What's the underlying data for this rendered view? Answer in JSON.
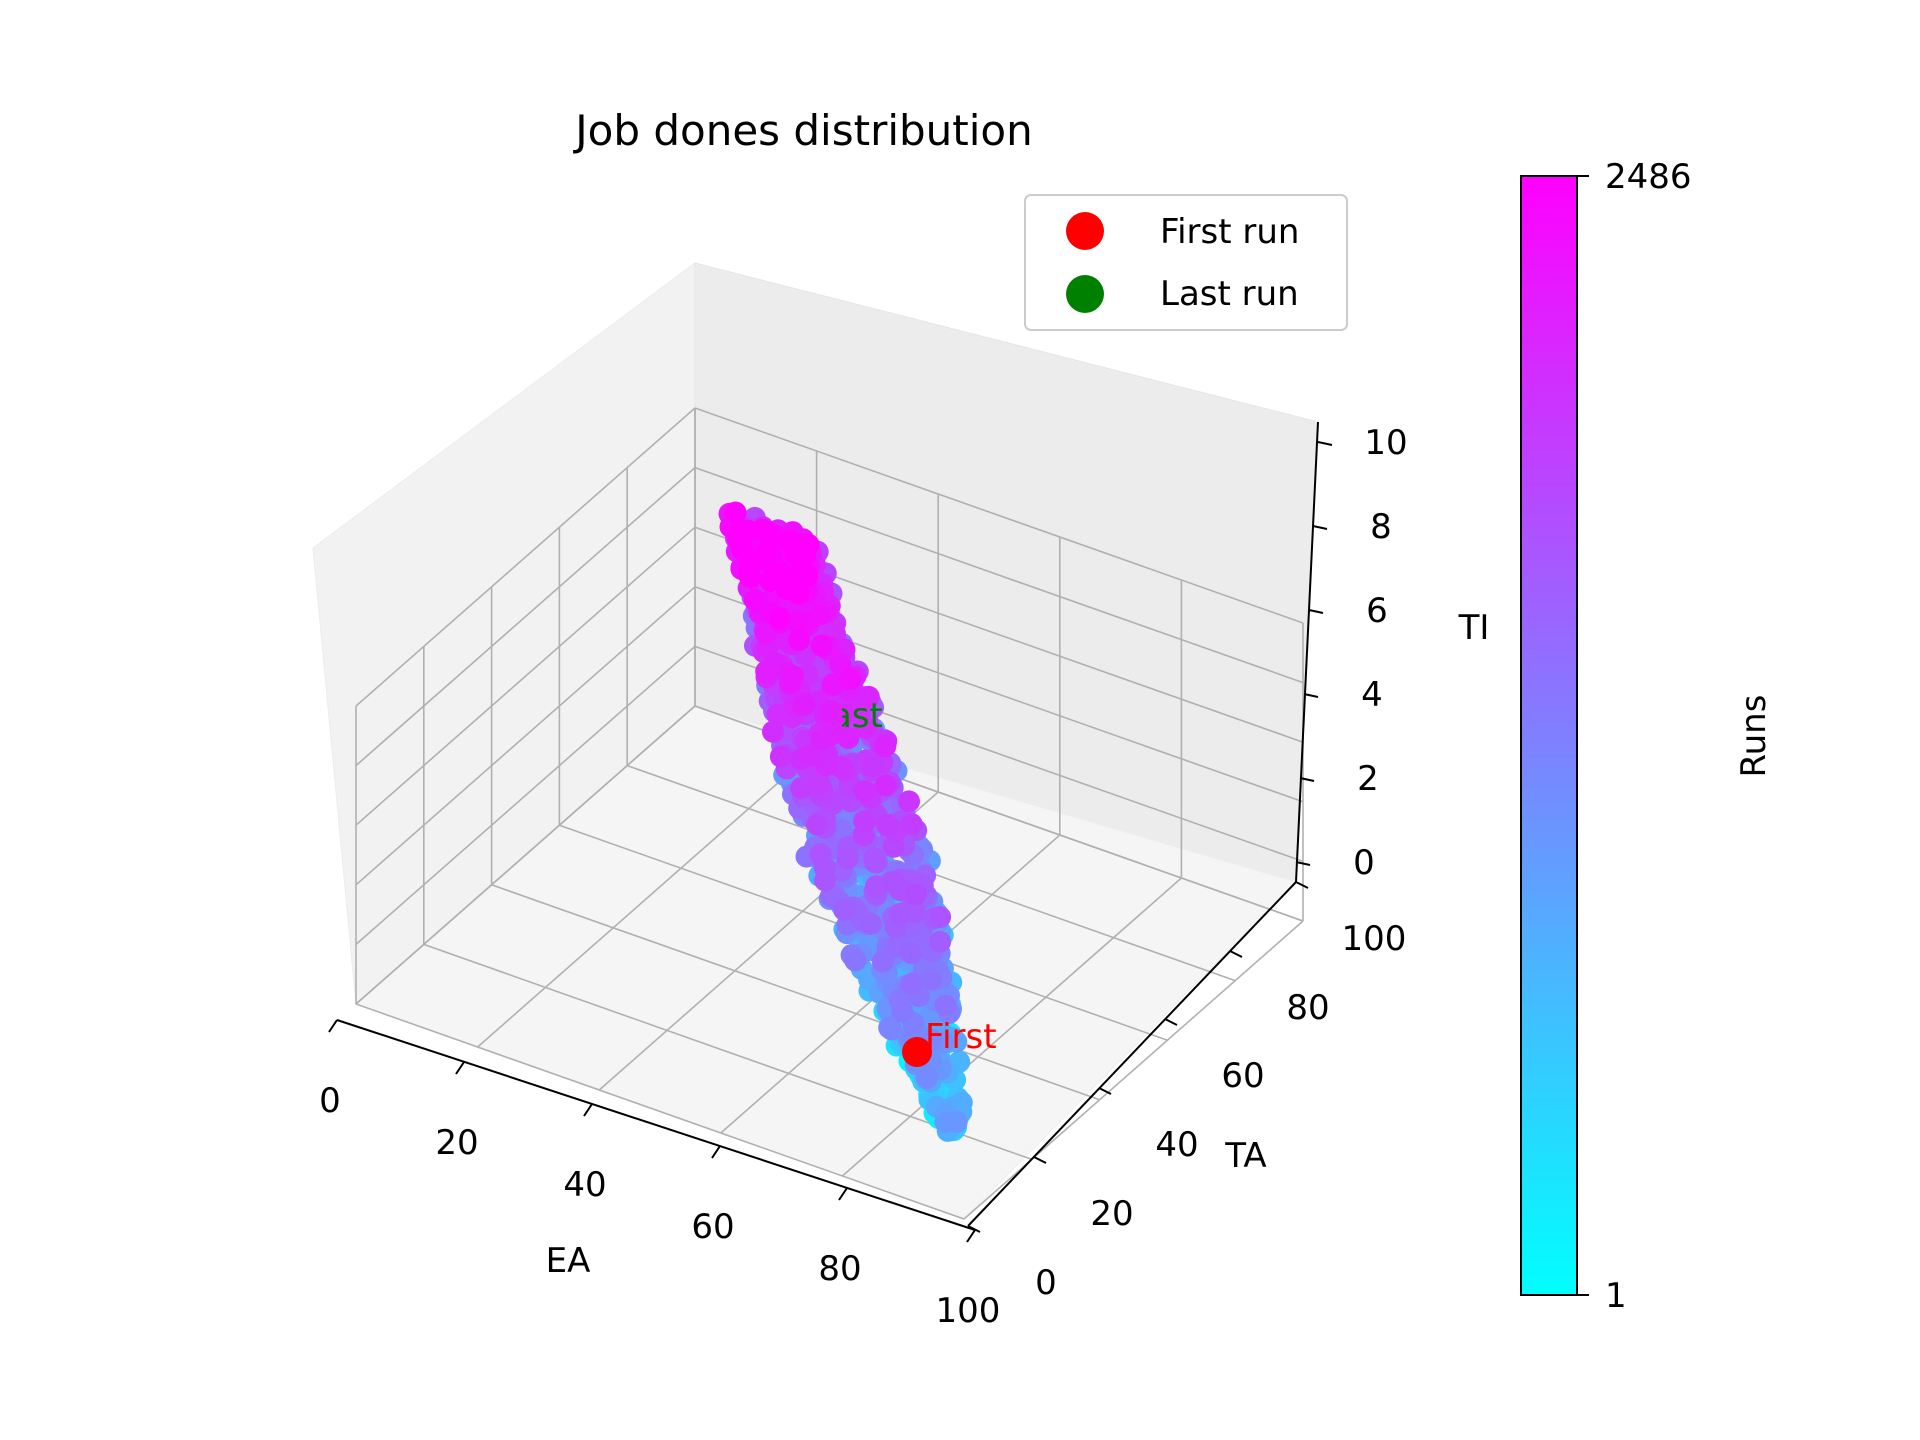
{
  "chart_data": {
    "type": "scatter",
    "title": "Job dones distribution",
    "projection": "3d",
    "xlabel": "EA",
    "ylabel": "TA",
    "zlabel": "TI",
    "xlim": [
      0,
      100
    ],
    "ylim": [
      0,
      100
    ],
    "zlim": [
      0,
      10
    ],
    "xticks": [
      "0",
      "20",
      "40",
      "60",
      "80",
      "100"
    ],
    "yticks": [
      "0",
      "20",
      "40",
      "60",
      "80",
      "100"
    ],
    "zticks": [
      "0",
      "2",
      "4",
      "6",
      "8",
      "10"
    ],
    "grid": true,
    "legend": {
      "placement": "upper right",
      "entries": [
        {
          "label": "First run",
          "color": "#ff0000"
        },
        {
          "label": "Last run",
          "color": "#008000"
        }
      ]
    },
    "colorbar": {
      "label": "Runs",
      "min_label": "1",
      "max_label": "2486",
      "colormap": "cool",
      "color_min": "#00ffff",
      "color_max": "#ff00ff"
    },
    "series": [
      {
        "name": "Runs",
        "run_count": 2486,
        "description_points": [
          {
            "ea": 91,
            "ta": 14,
            "ti": 0.4
          },
          {
            "ea": 90,
            "ta": 17,
            "ti": 0.6
          },
          {
            "ea": 89,
            "ta": 20,
            "ti": 0.8
          },
          {
            "ea": 87,
            "ta": 23,
            "ti": 1.1
          },
          {
            "ea": 85,
            "ta": 26,
            "ti": 1.4
          },
          {
            "ea": 83,
            "ta": 29,
            "ti": 1.7
          },
          {
            "ea": 81,
            "ta": 32,
            "ti": 2.0
          },
          {
            "ea": 78,
            "ta": 35,
            "ti": 2.4
          },
          {
            "ea": 75,
            "ta": 38,
            "ti": 2.8
          },
          {
            "ea": 72,
            "ta": 41,
            "ti": 3.2
          },
          {
            "ea": 69,
            "ta": 44,
            "ti": 3.6
          },
          {
            "ea": 66,
            "ta": 47,
            "ti": 4.0
          },
          {
            "ea": 62,
            "ta": 50,
            "ti": 4.4
          },
          {
            "ea": 58,
            "ta": 53,
            "ti": 4.8
          },
          {
            "ea": 54,
            "ta": 56,
            "ti": 5.2
          },
          {
            "ea": 50,
            "ta": 59,
            "ti": 5.6
          },
          {
            "ea": 46,
            "ta": 62,
            "ti": 6.0
          },
          {
            "ea": 42,
            "ta": 65,
            "ti": 6.4
          },
          {
            "ea": 38,
            "ta": 68,
            "ti": 6.9
          },
          {
            "ea": 34,
            "ta": 71,
            "ti": 7.4
          },
          {
            "ea": 30,
            "ta": 74,
            "ti": 7.9
          }
        ]
      }
    ],
    "annotations": [
      {
        "text": "First",
        "color": "#ff0000",
        "ea": 88,
        "ta": 18,
        "ti": 1.0
      },
      {
        "text": "Last",
        "color": "#008000",
        "ea": 50,
        "ta": 45,
        "ti": 4.6
      }
    ]
  }
}
